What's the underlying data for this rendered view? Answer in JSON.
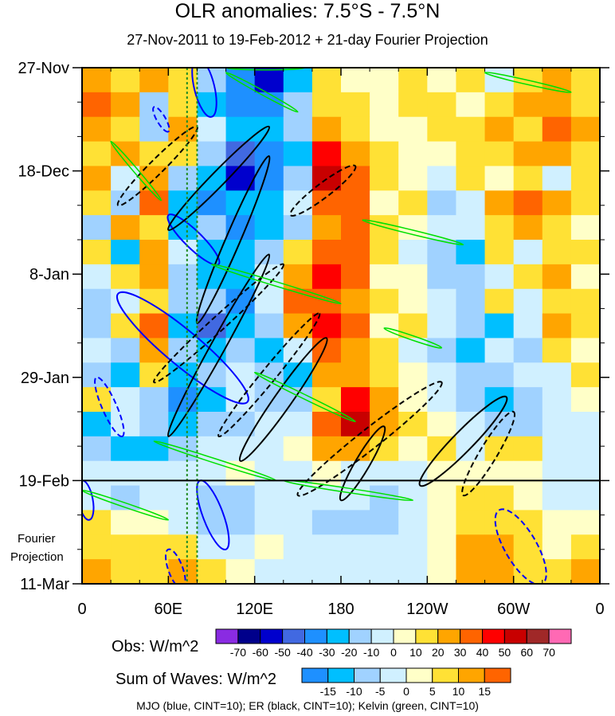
{
  "chart_data": {
    "type": "heatmap",
    "title": "OLR anomalies: 7.5°S - 7.5°N",
    "subtitle": "27-Nov-2011 to 19-Feb-2012 + 21-day Fourier Projection",
    "x_ticks": [
      "0",
      "60E",
      "120E",
      "180",
      "120W",
      "60W",
      "0"
    ],
    "x_tick_values": [
      0,
      60,
      120,
      180,
      240,
      300,
      360
    ],
    "y_ticks": [
      "27-Nov",
      "18-Dec",
      "8-Jan",
      "29-Jan",
      "19-Feb",
      "11-Mar"
    ],
    "y_tick_values": [
      0,
      21,
      42,
      63,
      84,
      105
    ],
    "xlim": [
      0,
      360
    ],
    "ylim_days": [
      0,
      105
    ],
    "obs_end_day": 84,
    "projection_label": [
      "Fourier",
      "Projection"
    ],
    "grid_lon_step": 20,
    "grid_day_step": 5,
    "values": [
      [
        20,
        10,
        20,
        10,
        -20,
        -40,
        -60,
        -30,
        10,
        0,
        0,
        10,
        0,
        10,
        -10,
        10,
        20,
        10
      ],
      [
        30,
        20,
        -20,
        10,
        -30,
        -40,
        -40,
        -20,
        10,
        10,
        0,
        10,
        10,
        0,
        10,
        20,
        20,
        10
      ],
      [
        20,
        10,
        -20,
        20,
        -10,
        -30,
        -30,
        -20,
        20,
        10,
        0,
        0,
        10,
        10,
        20,
        10,
        30,
        20
      ],
      [
        10,
        20,
        10,
        10,
        -20,
        -50,
        -40,
        -30,
        40,
        20,
        10,
        0,
        0,
        10,
        10,
        20,
        20,
        10
      ],
      [
        20,
        -10,
        20,
        -20,
        -30,
        -60,
        -40,
        -20,
        50,
        30,
        10,
        0,
        -10,
        10,
        0,
        10,
        -10,
        10
      ],
      [
        10,
        -20,
        30,
        -30,
        -40,
        -30,
        -30,
        -10,
        30,
        30,
        0,
        10,
        -20,
        -10,
        20,
        30,
        20,
        10
      ],
      [
        -20,
        20,
        10,
        -30,
        -20,
        -40,
        -30,
        -20,
        20,
        30,
        10,
        0,
        -10,
        -10,
        10,
        20,
        10,
        0
      ],
      [
        10,
        -30,
        20,
        -10,
        -30,
        -30,
        -20,
        10,
        30,
        30,
        10,
        -10,
        -20,
        -30,
        10,
        -10,
        10,
        10
      ],
      [
        -10,
        10,
        20,
        -20,
        -30,
        -30,
        -10,
        20,
        40,
        30,
        0,
        0,
        -20,
        -20,
        -10,
        10,
        20,
        0
      ],
      [
        -20,
        -10,
        10,
        -20,
        -20,
        -40,
        -10,
        30,
        30,
        20,
        10,
        0,
        -10,
        -20,
        10,
        -10,
        10,
        10
      ],
      [
        -20,
        10,
        30,
        -30,
        -50,
        -30,
        -20,
        20,
        40,
        30,
        0,
        10,
        -10,
        -20,
        -30,
        -10,
        20,
        10
      ],
      [
        -10,
        -20,
        20,
        -20,
        -30,
        -20,
        -30,
        -10,
        30,
        20,
        10,
        -10,
        -20,
        -30,
        -10,
        -20,
        10,
        0
      ],
      [
        -20,
        -30,
        10,
        -30,
        -20,
        -10,
        -20,
        -30,
        20,
        20,
        10,
        0,
        -10,
        -20,
        -20,
        -10,
        -10,
        10
      ],
      [
        10,
        -10,
        -20,
        -40,
        -30,
        -10,
        -20,
        -20,
        10,
        40,
        20,
        0,
        -10,
        -20,
        -30,
        -20,
        -10,
        0
      ],
      [
        -30,
        -10,
        -20,
        -30,
        -20,
        -20,
        -10,
        -10,
        30,
        50,
        20,
        10,
        0,
        -10,
        -20,
        -20,
        -10,
        -10
      ],
      [
        -20,
        -30,
        -30,
        -20,
        -10,
        -10,
        -10,
        0,
        20,
        20,
        10,
        0,
        10,
        -10,
        10,
        10,
        -10,
        -10
      ],
      [
        -10,
        -10,
        -10,
        -5,
        -5,
        0,
        -5,
        -5,
        0,
        -5,
        -5,
        -5,
        0,
        5,
        5,
        0,
        -5,
        -5
      ],
      [
        -5,
        -10,
        -5,
        -5,
        -10,
        -10,
        -5,
        -5,
        -5,
        -5,
        -10,
        -5,
        0,
        5,
        5,
        0,
        -5,
        -5
      ],
      [
        5,
        0,
        0,
        -5,
        -10,
        -10,
        -5,
        -5,
        -10,
        -10,
        -10,
        -5,
        0,
        5,
        5,
        5,
        0,
        0
      ],
      [
        5,
        5,
        5,
        5,
        -5,
        -5,
        0,
        -5,
        -5,
        -5,
        -5,
        -5,
        0,
        10,
        10,
        5,
        0,
        5
      ],
      [
        10,
        5,
        5,
        10,
        5,
        0,
        -5,
        -5,
        -5,
        -5,
        -5,
        -5,
        0,
        10,
        10,
        5,
        5,
        10
      ]
    ],
    "legends": [
      {
        "label": "Obs: W/m^2",
        "colors": [
          "#8a2be2",
          "#00008b",
          "#0000cd",
          "#4169e1",
          "#1e90ff",
          "#00bfff",
          "#a0d2ff",
          "#d0f0ff",
          "#ffffc8",
          "#ffe135",
          "#ffa500",
          "#ff6400",
          "#ff0000",
          "#c80000",
          "#a02828",
          "#ff69b4"
        ],
        "ticks": [
          "-70",
          "-60",
          "-50",
          "-40",
          "-30",
          "-20",
          "-10",
          "0",
          "10",
          "20",
          "30",
          "40",
          "50",
          "60",
          "70"
        ],
        "levels": [
          -70,
          -60,
          -50,
          -40,
          -30,
          -20,
          -10,
          0,
          10,
          20,
          30,
          40,
          50,
          60,
          70
        ]
      },
      {
        "label": "Sum of Waves: W/m^2",
        "colors": [
          "#1e90ff",
          "#00bfff",
          "#a0d2ff",
          "#d0f0ff",
          "#ffffc8",
          "#ffe135",
          "#ffa500",
          "#ff6400"
        ],
        "ticks": [
          "-15",
          "-10",
          "-5",
          "0",
          "5",
          "10",
          "15"
        ],
        "levels": [
          -15,
          -10,
          -5,
          0,
          5,
          10,
          15
        ]
      }
    ],
    "contour_note": "MJO (blue, CINT=10); ER (black, CINT=10); Kelvin (green, CINT=10)",
    "contours": [
      {
        "wave": "MJO",
        "color": "#0000ff",
        "dashed": false,
        "lon1": 80,
        "day1": -2,
        "lon2": 90,
        "day2": 10,
        "width": 14
      },
      {
        "wave": "MJO",
        "color": "#0000ff",
        "dashed": false,
        "lon1": 60,
        "day1": 30,
        "lon2": 95,
        "day2": 40,
        "width": 12
      },
      {
        "wave": "MJO",
        "color": "#0000ff",
        "dashed": false,
        "lon1": 25,
        "day1": 46,
        "lon2": 115,
        "day2": 68,
        "width": 24
      },
      {
        "wave": "MJO",
        "color": "#0000ff",
        "dashed": false,
        "lon1": 82,
        "day1": 84,
        "lon2": 100,
        "day2": 98,
        "width": 14
      },
      {
        "wave": "MJO",
        "color": "#0000ff",
        "dashed": false,
        "lon1": 0,
        "day1": 84,
        "lon2": 5,
        "day2": 92,
        "width": 10
      },
      {
        "wave": "MJO",
        "color": "#0000ff",
        "dashed": true,
        "lon1": 50,
        "day1": 8,
        "lon2": 60,
        "day2": 13,
        "width": 6
      },
      {
        "wave": "MJO",
        "color": "#0000ff",
        "dashed": true,
        "lon1": 10,
        "day1": 63,
        "lon2": 28,
        "day2": 75,
        "width": 10
      },
      {
        "wave": "MJO",
        "color": "#0000ff",
        "dashed": true,
        "lon1": 290,
        "day1": 90,
        "lon2": 320,
        "day2": 105,
        "width": 22
      },
      {
        "wave": "MJO",
        "color": "#0000ff",
        "dashed": true,
        "lon1": 60,
        "day1": 98,
        "lon2": 70,
        "day2": 106,
        "width": 10
      },
      {
        "wave": "ER",
        "color": "#000000",
        "dashed": false,
        "lon1": 60,
        "day1": 33,
        "lon2": 130,
        "day2": 12,
        "width": 10
      },
      {
        "wave": "ER",
        "color": "#000000",
        "dashed": false,
        "lon1": 80,
        "day1": 52,
        "lon2": 130,
        "day2": 18,
        "width": 10
      },
      {
        "wave": "ER",
        "color": "#000000",
        "dashed": false,
        "lon1": 60,
        "day1": 75,
        "lon2": 130,
        "day2": 38,
        "width": 10
      },
      {
        "wave": "ER",
        "color": "#000000",
        "dashed": false,
        "lon1": 110,
        "day1": 80,
        "lon2": 170,
        "day2": 55,
        "width": 12
      },
      {
        "wave": "ER",
        "color": "#000000",
        "dashed": false,
        "lon1": 180,
        "day1": 88,
        "lon2": 210,
        "day2": 73,
        "width": 10
      },
      {
        "wave": "ER",
        "color": "#000000",
        "dashed": false,
        "lon1": 235,
        "day1": 85,
        "lon2": 295,
        "day2": 67,
        "width": 14
      },
      {
        "wave": "ER",
        "color": "#000000",
        "dashed": true,
        "lon1": 25,
        "day1": 28,
        "lon2": 80,
        "day2": 12,
        "width": 10
      },
      {
        "wave": "ER",
        "color": "#000000",
        "dashed": true,
        "lon1": 145,
        "day1": 30,
        "lon2": 190,
        "day2": 20,
        "width": 10
      },
      {
        "wave": "ER",
        "color": "#000000",
        "dashed": true,
        "lon1": 50,
        "day1": 64,
        "lon2": 140,
        "day2": 40,
        "width": 10
      },
      {
        "wave": "ER",
        "color": "#000000",
        "dashed": true,
        "lon1": 95,
        "day1": 75,
        "lon2": 165,
        "day2": 50,
        "width": 10
      },
      {
        "wave": "ER",
        "color": "#000000",
        "dashed": true,
        "lon1": 150,
        "day1": 87,
        "lon2": 250,
        "day2": 64,
        "width": 14
      },
      {
        "wave": "ER",
        "color": "#000000",
        "dashed": true,
        "lon1": 265,
        "day1": 87,
        "lon2": 300,
        "day2": 70,
        "width": 12
      },
      {
        "wave": "Kelvin",
        "color": "#00e000",
        "dashed": false,
        "lon1": 100,
        "day1": 1,
        "lon2": 150,
        "day2": 9,
        "width": 3
      },
      {
        "wave": "Kelvin",
        "color": "#00e000",
        "dashed": false,
        "lon1": 20,
        "day1": 15,
        "lon2": 55,
        "day2": 27,
        "width": 3
      },
      {
        "wave": "Kelvin",
        "color": "#00e000",
        "dashed": false,
        "lon1": 100,
        "day1": 0,
        "lon2": 155,
        "day2": 0,
        "width": 3
      },
      {
        "wave": "Kelvin",
        "color": "#00e000",
        "dashed": false,
        "lon1": 280,
        "day1": 1,
        "lon2": 340,
        "day2": 5,
        "width": 3
      },
      {
        "wave": "Kelvin",
        "color": "#00e000",
        "dashed": false,
        "lon1": 90,
        "day1": 40,
        "lon2": 180,
        "day2": 48,
        "width": 3
      },
      {
        "wave": "Kelvin",
        "color": "#00e000",
        "dashed": false,
        "lon1": 195,
        "day1": 31,
        "lon2": 265,
        "day2": 36,
        "width": 3
      },
      {
        "wave": "Kelvin",
        "color": "#00e000",
        "dashed": false,
        "lon1": 210,
        "day1": 53,
        "lon2": 250,
        "day2": 57,
        "width": 3
      },
      {
        "wave": "Kelvin",
        "color": "#00e000",
        "dashed": false,
        "lon1": 120,
        "day1": 62,
        "lon2": 190,
        "day2": 72,
        "width": 3
      },
      {
        "wave": "Kelvin",
        "color": "#00e000",
        "dashed": false,
        "lon1": 50,
        "day1": 76,
        "lon2": 135,
        "day2": 84,
        "width": 3
      },
      {
        "wave": "Kelvin",
        "color": "#00e000",
        "dashed": false,
        "lon1": 140,
        "day1": 84,
        "lon2": 230,
        "day2": 88,
        "width": 3
      },
      {
        "wave": "Kelvin",
        "color": "#00e000",
        "dashed": false,
        "lon1": 0,
        "day1": 86,
        "lon2": 60,
        "day2": 92,
        "width": 3
      }
    ]
  }
}
